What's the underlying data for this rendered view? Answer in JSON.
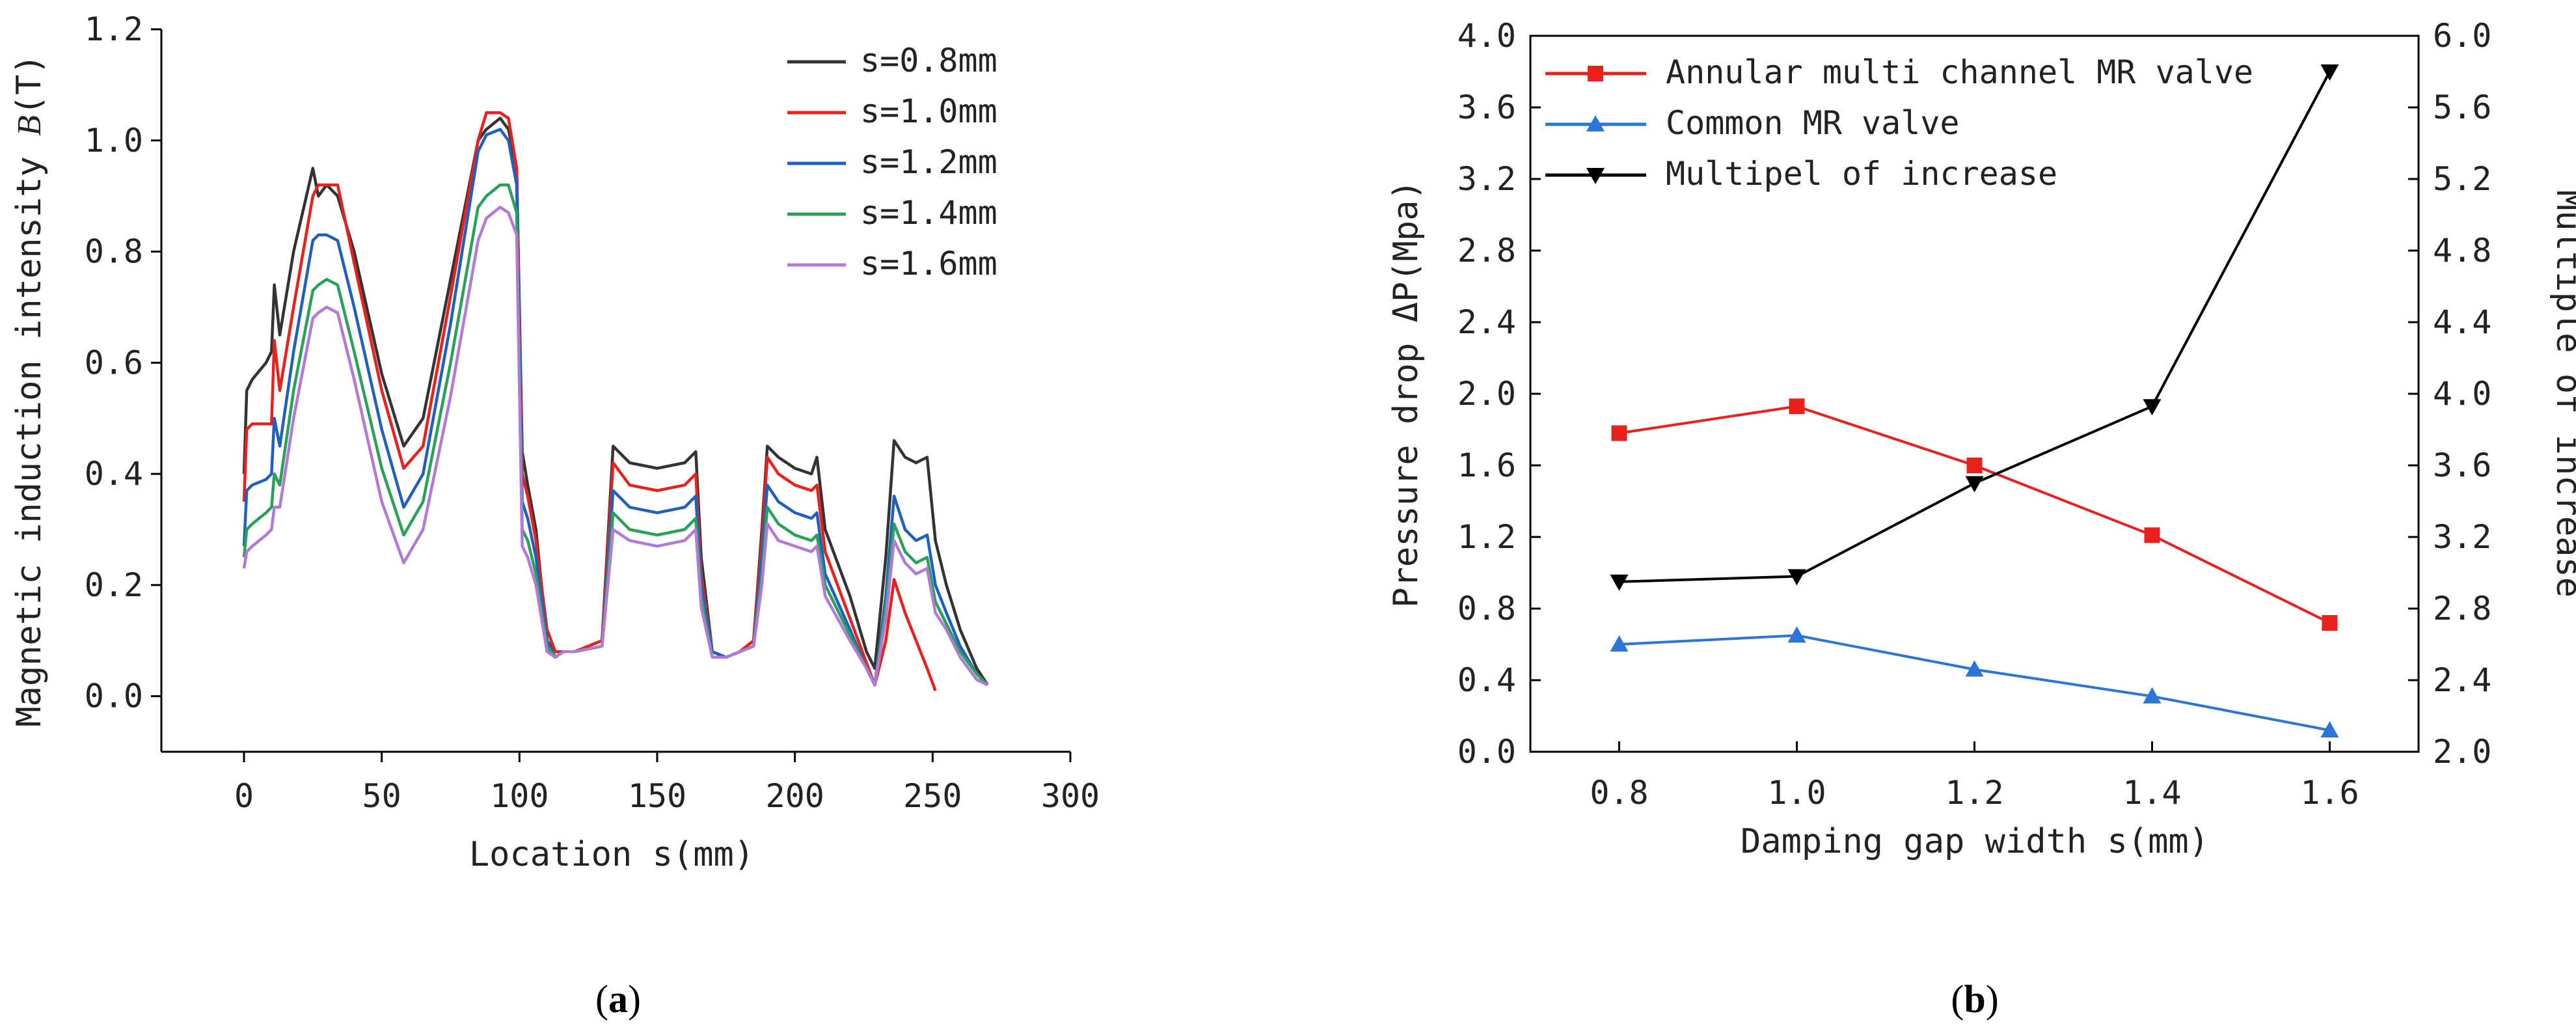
{
  "chart_data": [
    {
      "id": "a",
      "type": "line",
      "panel_label": "a",
      "title": "",
      "xlabel": "Location s(mm)",
      "ylabel_prefix": "Magnetic induction intensity ",
      "ylabel_var": "B",
      "ylabel_suffix": "(T)",
      "xlim": [
        -30,
        300
      ],
      "ylim": [
        -0.1,
        1.2
      ],
      "xticks": [
        0,
        50,
        100,
        150,
        200,
        250,
        300
      ],
      "yticks": [
        0.0,
        0.2,
        0.4,
        0.6,
        0.8,
        1.0,
        1.2
      ],
      "xtick_labels": [
        "0",
        "50",
        "100",
        "150",
        "200",
        "250",
        "300"
      ],
      "ytick_labels": [
        "0.0",
        "0.2",
        "0.4",
        "0.6",
        "0.8",
        "1.0",
        "1.2"
      ],
      "legend_position": "top-right",
      "series": [
        {
          "name": "s=0.8mm",
          "color": "#333333",
          "x": [
            0,
            1,
            3,
            8,
            10,
            11,
            13,
            18,
            25,
            27,
            30,
            34,
            40,
            50,
            58,
            65,
            75,
            85,
            88,
            93,
            96,
            99,
            101,
            103,
            106,
            110,
            113,
            116,
            120,
            130,
            134,
            140,
            150,
            160,
            164,
            166,
            170,
            175,
            180,
            185,
            188,
            190,
            194,
            200,
            206,
            208,
            211,
            220,
            226,
            229,
            233,
            236,
            240,
            244,
            248,
            251,
            255,
            260,
            266,
            270
          ],
          "y": [
            0.4,
            0.55,
            0.57,
            0.6,
            0.62,
            0.74,
            0.65,
            0.8,
            0.95,
            0.9,
            0.92,
            0.9,
            0.8,
            0.58,
            0.45,
            0.5,
            0.75,
            1.0,
            1.02,
            1.04,
            1.02,
            0.95,
            0.44,
            0.38,
            0.3,
            0.1,
            0.08,
            0.08,
            0.08,
            0.1,
            0.45,
            0.42,
            0.41,
            0.42,
            0.44,
            0.25,
            0.08,
            0.07,
            0.08,
            0.1,
            0.3,
            0.45,
            0.43,
            0.41,
            0.4,
            0.43,
            0.3,
            0.18,
            0.08,
            0.05,
            0.25,
            0.46,
            0.43,
            0.42,
            0.43,
            0.28,
            0.2,
            0.12,
            0.05,
            0.02
          ]
        },
        {
          "name": "s=1.0mm",
          "color": "#e8211d",
          "x": [
            0,
            1,
            3,
            8,
            10,
            11,
            13,
            18,
            25,
            27,
            30,
            34,
            40,
            50,
            58,
            65,
            75,
            85,
            88,
            93,
            96,
            99,
            101,
            103,
            106,
            110,
            113,
            116,
            120,
            130,
            134,
            140,
            150,
            160,
            164,
            166,
            170,
            175,
            180,
            185,
            188,
            190,
            194,
            200,
            206,
            208,
            211,
            220,
            226,
            229,
            233,
            236,
            240,
            244,
            248,
            251
          ],
          "y": [
            0.35,
            0.48,
            0.49,
            0.49,
            0.49,
            0.64,
            0.55,
            0.7,
            0.9,
            0.92,
            0.92,
            0.92,
            0.78,
            0.55,
            0.41,
            0.45,
            0.72,
            1.0,
            1.05,
            1.05,
            1.04,
            0.95,
            0.4,
            0.36,
            0.28,
            0.12,
            0.08,
            0.08,
            0.08,
            0.1,
            0.42,
            0.38,
            0.37,
            0.38,
            0.4,
            0.22,
            0.08,
            0.07,
            0.08,
            0.1,
            0.28,
            0.43,
            0.4,
            0.38,
            0.37,
            0.38,
            0.26,
            0.14,
            0.06,
            0.02,
            0.1,
            0.21,
            0.15,
            0.1,
            0.05,
            0.01
          ]
        },
        {
          "name": "s=1.2mm",
          "color": "#1f5fbf",
          "x": [
            0,
            1,
            3,
            8,
            10,
            11,
            13,
            18,
            25,
            27,
            30,
            34,
            40,
            50,
            58,
            65,
            75,
            85,
            88,
            93,
            96,
            99,
            101,
            103,
            106,
            110,
            113,
            116,
            120,
            130,
            134,
            140,
            150,
            160,
            164,
            166,
            170,
            175,
            180,
            185,
            188,
            190,
            194,
            200,
            206,
            208,
            211,
            220,
            226,
            229,
            233,
            236,
            240,
            244,
            248,
            251,
            255,
            260,
            266,
            270
          ],
          "y": [
            0.27,
            0.37,
            0.38,
            0.39,
            0.4,
            0.5,
            0.45,
            0.62,
            0.82,
            0.83,
            0.83,
            0.82,
            0.7,
            0.48,
            0.34,
            0.4,
            0.67,
            0.98,
            1.01,
            1.02,
            1.0,
            0.92,
            0.35,
            0.32,
            0.25,
            0.1,
            0.07,
            0.08,
            0.08,
            0.09,
            0.37,
            0.34,
            0.33,
            0.34,
            0.36,
            0.2,
            0.08,
            0.07,
            0.08,
            0.09,
            0.25,
            0.38,
            0.35,
            0.33,
            0.32,
            0.33,
            0.22,
            0.12,
            0.05,
            0.02,
            0.18,
            0.36,
            0.3,
            0.28,
            0.29,
            0.2,
            0.15,
            0.09,
            0.04,
            0.02
          ]
        },
        {
          "name": "s=1.4mm",
          "color": "#2aa05a",
          "x": [
            0,
            1,
            3,
            8,
            10,
            11,
            13,
            18,
            25,
            27,
            30,
            34,
            40,
            50,
            58,
            65,
            75,
            85,
            88,
            93,
            96,
            99,
            101,
            103,
            106,
            110,
            113,
            116,
            120,
            130,
            134,
            140,
            150,
            160,
            164,
            166,
            170,
            175,
            180,
            185,
            188,
            190,
            194,
            200,
            206,
            208,
            211,
            220,
            226,
            229,
            233,
            236,
            240,
            244,
            248,
            251,
            255,
            260,
            266,
            270
          ],
          "y": [
            0.25,
            0.3,
            0.31,
            0.33,
            0.34,
            0.4,
            0.38,
            0.55,
            0.73,
            0.74,
            0.75,
            0.74,
            0.62,
            0.41,
            0.29,
            0.35,
            0.6,
            0.88,
            0.9,
            0.92,
            0.92,
            0.87,
            0.3,
            0.28,
            0.22,
            0.09,
            0.07,
            0.08,
            0.08,
            0.09,
            0.33,
            0.3,
            0.29,
            0.3,
            0.32,
            0.18,
            0.07,
            0.07,
            0.08,
            0.09,
            0.22,
            0.34,
            0.31,
            0.29,
            0.28,
            0.29,
            0.2,
            0.11,
            0.05,
            0.02,
            0.16,
            0.31,
            0.26,
            0.24,
            0.25,
            0.17,
            0.13,
            0.08,
            0.04,
            0.02
          ]
        },
        {
          "name": "s=1.6mm",
          "color": "#b07ad6",
          "x": [
            0,
            1,
            3,
            8,
            10,
            11,
            13,
            18,
            25,
            27,
            30,
            34,
            40,
            50,
            58,
            65,
            75,
            85,
            88,
            93,
            96,
            99,
            101,
            103,
            106,
            110,
            113,
            116,
            120,
            130,
            134,
            140,
            150,
            160,
            164,
            166,
            170,
            175,
            180,
            185,
            188,
            190,
            194,
            200,
            206,
            208,
            211,
            220,
            226,
            229,
            233,
            236,
            240,
            244,
            248,
            251,
            255,
            260,
            266,
            270
          ],
          "y": [
            0.23,
            0.26,
            0.27,
            0.29,
            0.3,
            0.34,
            0.34,
            0.5,
            0.68,
            0.69,
            0.7,
            0.69,
            0.57,
            0.35,
            0.24,
            0.3,
            0.54,
            0.82,
            0.86,
            0.88,
            0.87,
            0.83,
            0.27,
            0.25,
            0.2,
            0.08,
            0.07,
            0.08,
            0.08,
            0.09,
            0.3,
            0.28,
            0.27,
            0.28,
            0.3,
            0.16,
            0.07,
            0.07,
            0.08,
            0.09,
            0.2,
            0.31,
            0.28,
            0.27,
            0.26,
            0.27,
            0.18,
            0.1,
            0.05,
            0.02,
            0.14,
            0.28,
            0.24,
            0.22,
            0.23,
            0.15,
            0.12,
            0.07,
            0.03,
            0.02
          ]
        }
      ]
    },
    {
      "id": "b",
      "type": "line",
      "panel_label": "b",
      "title": "",
      "xlabel": "Damping gap width s(mm)",
      "ylabel": "Pressure drop ΔP(Mpa)",
      "y2label": "Multiple of increase",
      "categories": [
        "0.8",
        "1.0",
        "1.2",
        "1.4",
        "1.6"
      ],
      "x": [
        0.8,
        1.0,
        1.2,
        1.4,
        1.6
      ],
      "xlim": [
        0.7,
        1.7
      ],
      "ylim": [
        0.0,
        4.0
      ],
      "y2lim": [
        2.0,
        6.0
      ],
      "yticks": [
        0.0,
        0.4,
        0.8,
        1.2,
        1.6,
        2.0,
        2.4,
        2.8,
        3.2,
        3.6,
        4.0
      ],
      "y2ticks": [
        2.0,
        2.4,
        2.8,
        3.2,
        3.6,
        4.0,
        4.4,
        4.8,
        5.2,
        5.6,
        6.0
      ],
      "ytick_labels": [
        "0.0",
        "0.4",
        "0.8",
        "1.2",
        "1.6",
        "2.0",
        "2.4",
        "2.8",
        "3.2",
        "3.6",
        "4.0"
      ],
      "y2tick_labels": [
        "2.0",
        "2.4",
        "2.8",
        "3.2",
        "3.6",
        "4.0",
        "4.4",
        "4.8",
        "5.2",
        "5.6",
        "6.0"
      ],
      "legend_position": "top-left",
      "series": [
        {
          "name": "Annular multi channel MR valve",
          "color": "#e8211d",
          "marker": "square",
          "axis": "left",
          "values": [
            1.78,
            1.93,
            1.6,
            1.21,
            0.72
          ]
        },
        {
          "name": "Common MR valve",
          "color": "#2a75d6",
          "marker": "triangle-up",
          "axis": "left",
          "values": [
            0.6,
            0.65,
            0.46,
            0.31,
            0.12
          ]
        },
        {
          "name": "Multipel of increase",
          "color": "#000000",
          "marker": "triangle-down",
          "axis": "right",
          "values": [
            2.95,
            2.98,
            3.5,
            3.93,
            5.8
          ]
        }
      ]
    }
  ]
}
